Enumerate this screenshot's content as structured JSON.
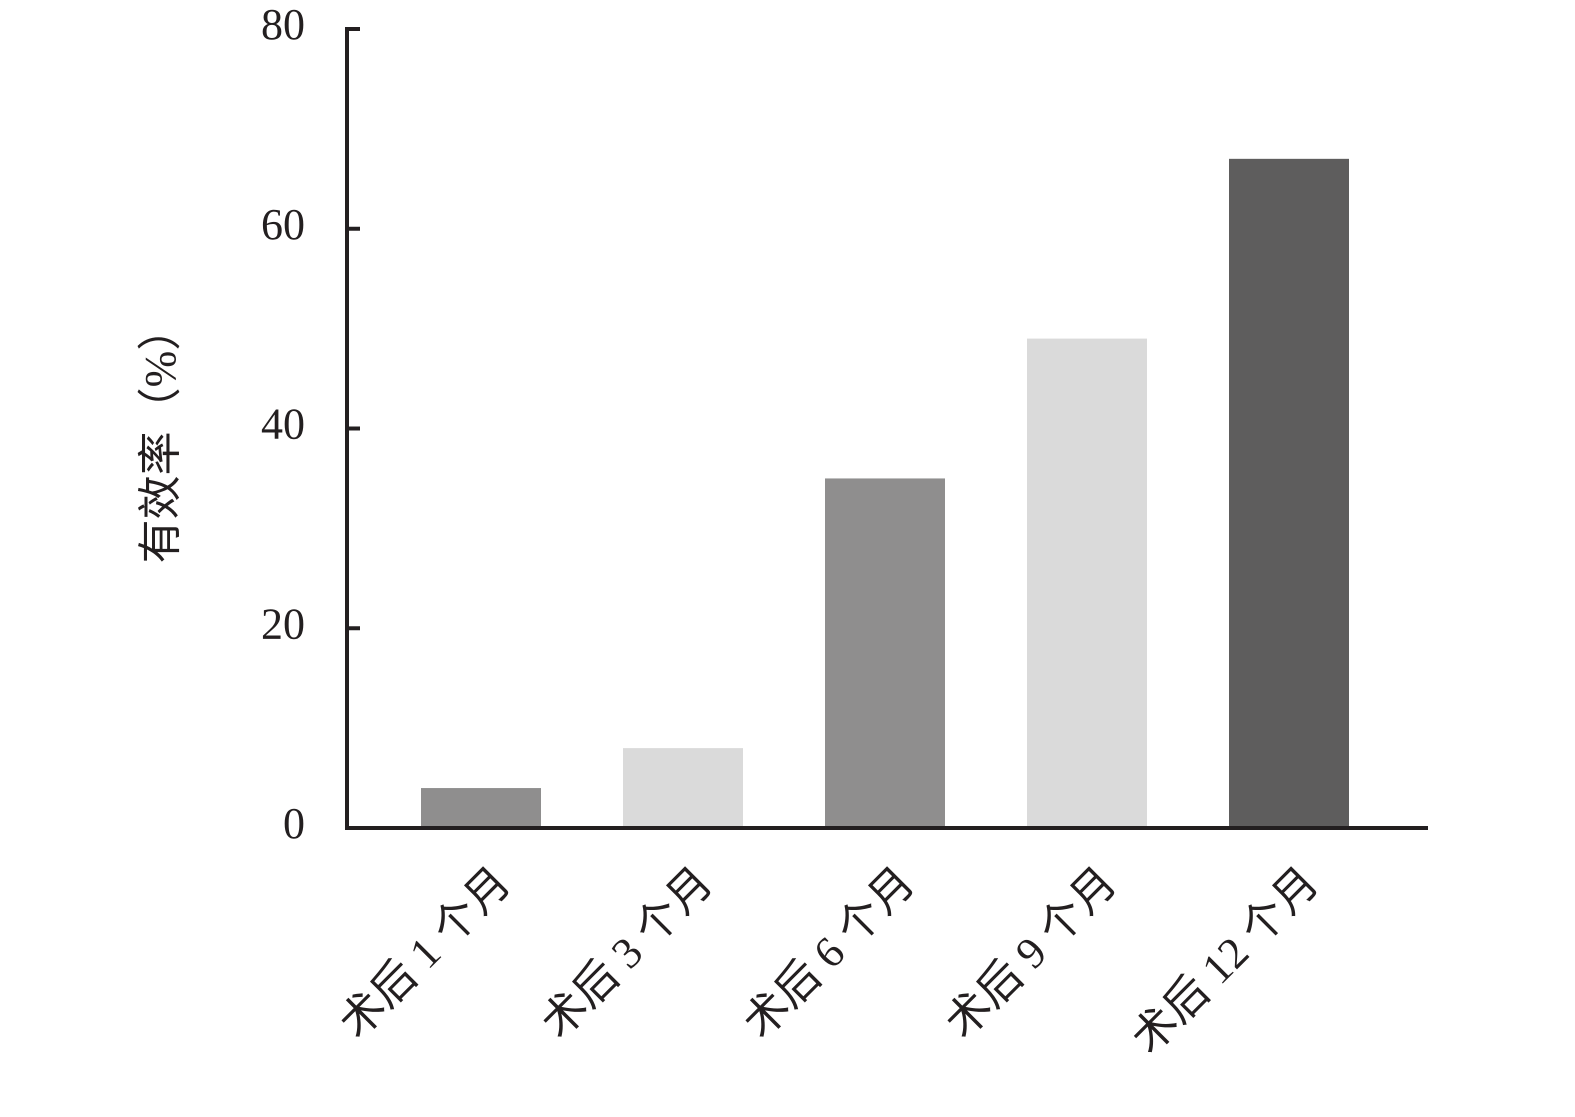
{
  "chart_data": {
    "type": "bar",
    "ylabel": "有效率（%）",
    "categories": [
      "术后 1 个月",
      "术后 3 个月",
      "术后 6 个月",
      "术后 9 个月",
      "术后 12 个月"
    ],
    "values": [
      4,
      8,
      35,
      49,
      67
    ],
    "colors": [
      "#8f8e8e",
      "#dadada",
      "#8f8e8e",
      "#dadada",
      "#5e5d5d"
    ],
    "ylim": [
      0,
      80
    ],
    "yticks": [
      0,
      20,
      40,
      60,
      80
    ],
    "grid": false
  }
}
